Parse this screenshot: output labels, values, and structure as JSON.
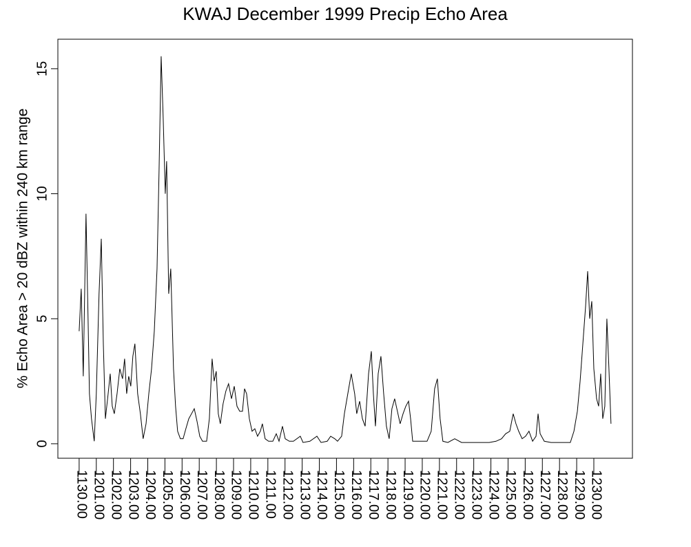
{
  "chart_data": {
    "type": "line",
    "title": "KWAJ December 1999 Precip Echo Area",
    "y_label": "% Echo Area > 20 dBZ within 240 km range",
    "xlim": [
      -1.24,
      32.25
    ],
    "ylim": [
      -0.58,
      16.18
    ],
    "yticks": [
      0,
      5,
      10,
      15
    ],
    "xticks": [
      {
        "value": 0,
        "label": "1130.00"
      },
      {
        "value": 1,
        "label": "1201.00"
      },
      {
        "value": 2,
        "label": "1202.00"
      },
      {
        "value": 3,
        "label": "1203.00"
      },
      {
        "value": 4,
        "label": "1204.00"
      },
      {
        "value": 5,
        "label": "1205.00"
      },
      {
        "value": 6,
        "label": "1206.00"
      },
      {
        "value": 7,
        "label": "1207.00"
      },
      {
        "value": 8,
        "label": "1208.00"
      },
      {
        "value": 9,
        "label": "1209.00"
      },
      {
        "value": 10,
        "label": "1210.00"
      },
      {
        "value": 11,
        "label": "1211.00"
      },
      {
        "value": 12,
        "label": "1212.00"
      },
      {
        "value": 13,
        "label": "1213.00"
      },
      {
        "value": 14,
        "label": "1214.00"
      },
      {
        "value": 15,
        "label": "1215.00"
      },
      {
        "value": 16,
        "label": "1216.00"
      },
      {
        "value": 17,
        "label": "1217.00"
      },
      {
        "value": 18,
        "label": "1218.00"
      },
      {
        "value": 19,
        "label": "1219.00"
      },
      {
        "value": 20,
        "label": "1220.00"
      },
      {
        "value": 21,
        "label": "1221.00"
      },
      {
        "value": 22,
        "label": "1222.00"
      },
      {
        "value": 23,
        "label": "1223.00"
      },
      {
        "value": 24,
        "label": "1224.00"
      },
      {
        "value": 25,
        "label": "1225.00"
      },
      {
        "value": 26,
        "label": "1226.00"
      },
      {
        "value": 27,
        "label": "1227.00"
      },
      {
        "value": 28,
        "label": "1228.00"
      },
      {
        "value": 29,
        "label": "1229.00"
      },
      {
        "value": 30,
        "label": "1230.00"
      }
    ],
    "color": "#000000",
    "x": [
      0,
      0.12,
      0.24,
      0.4,
      0.52,
      0.6,
      0.72,
      0.88,
      1.0,
      1.16,
      1.29,
      1.41,
      1.53,
      1.69,
      1.81,
      1.93,
      2.05,
      2.21,
      2.37,
      2.53,
      2.65,
      2.77,
      2.89,
      3.01,
      3.13,
      3.25,
      3.41,
      3.57,
      3.73,
      3.9,
      4.06,
      4.22,
      4.38,
      4.54,
      4.66,
      4.78,
      4.9,
      5.02,
      5.1,
      5.22,
      5.34,
      5.5,
      5.62,
      5.74,
      5.9,
      6.06,
      6.22,
      6.39,
      6.55,
      6.71,
      6.87,
      7.03,
      7.19,
      7.43,
      7.59,
      7.75,
      7.87,
      7.99,
      8.11,
      8.23,
      8.39,
      8.55,
      8.71,
      8.88,
      9.04,
      9.2,
      9.36,
      9.52,
      9.64,
      9.76,
      9.92,
      10.08,
      10.24,
      10.4,
      10.56,
      10.68,
      10.84,
      11.04,
      11.29,
      11.49,
      11.65,
      11.85,
      12.01,
      12.25,
      12.49,
      12.89,
      13.05,
      13.45,
      13.86,
      14.1,
      14.46,
      14.66,
      14.9,
      15.06,
      15.3,
      15.46,
      15.66,
      15.86,
      16.06,
      16.18,
      16.35,
      16.51,
      16.67,
      16.87,
      17.03,
      17.15,
      17.27,
      17.43,
      17.59,
      17.75,
      17.91,
      18.07,
      18.23,
      18.39,
      18.55,
      18.71,
      18.88,
      19.04,
      19.2,
      19.32,
      19.44,
      19.88,
      20.28,
      20.52,
      20.72,
      20.88,
      21.04,
      21.2,
      21.49,
      21.89,
      22.29,
      23.09,
      23.9,
      24.3,
      24.62,
      24.86,
      25.1,
      25.3,
      25.46,
      25.62,
      25.82,
      26.02,
      26.22,
      26.43,
      26.63,
      26.75,
      26.87,
      27.11,
      27.51,
      28.11,
      28.63,
      28.84,
      29.04,
      29.2,
      29.36,
      29.52,
      29.64,
      29.76,
      29.88,
      30.0,
      30.16,
      30.28,
      30.4,
      30.52,
      30.64,
      30.76,
      30.88,
      31.0
    ],
    "values": [
      4.5,
      6.2,
      2.7,
      9.2,
      5,
      2,
      1,
      0.1,
      2,
      6,
      8.2,
      4,
      1,
      2,
      2.8,
      1.5,
      1.2,
      2,
      3,
      2.6,
      3.4,
      2,
      2.7,
      2.3,
      3.5,
      4,
      2,
      1.2,
      0.2,
      0.8,
      2,
      3,
      4.5,
      7,
      11,
      15.5,
      13,
      10,
      11.3,
      6,
      7,
      3,
      1.5,
      0.5,
      0.2,
      0.2,
      0.6,
      1,
      1.2,
      1.4,
      0.9,
      0.3,
      0.1,
      0.1,
      1,
      3.4,
      2.5,
      2.9,
      1.2,
      0.8,
      1.6,
      2.1,
      2.4,
      1.8,
      2.3,
      1.5,
      1.3,
      1.3,
      2.2,
      2,
      1,
      0.5,
      0.6,
      0.3,
      0.5,
      0.8,
      0.2,
      0.1,
      0.1,
      0.4,
      0.1,
      0.7,
      0.2,
      0.1,
      0.1,
      0.3,
      0.05,
      0.1,
      0.3,
      0.05,
      0.1,
      0.3,
      0.2,
      0.1,
      0.3,
      1.2,
      2,
      2.8,
      2,
      1.2,
      1.7,
      1,
      0.7,
      2.8,
      3.7,
      2,
      0.7,
      2.8,
      3.5,
      2,
      0.7,
      0.2,
      1.4,
      1.8,
      1.3,
      0.8,
      1.2,
      1.5,
      1.7,
      1,
      0.1,
      0.1,
      0.1,
      0.5,
      2.2,
      2.6,
      1,
      0.1,
      0.05,
      0.2,
      0.05,
      0.05,
      0.05,
      0.1,
      0.2,
      0.4,
      0.5,
      1.2,
      0.8,
      0.5,
      0.2,
      0.3,
      0.5,
      0.1,
      0.3,
      1.2,
      0.4,
      0.1,
      0.05,
      0.05,
      0.05,
      0.5,
      1.3,
      2.5,
      4,
      5.5,
      6.9,
      5,
      5.7,
      3,
      1.8,
      1.5,
      2.8,
      1,
      1.5,
      5,
      3,
      0.8
    ]
  }
}
